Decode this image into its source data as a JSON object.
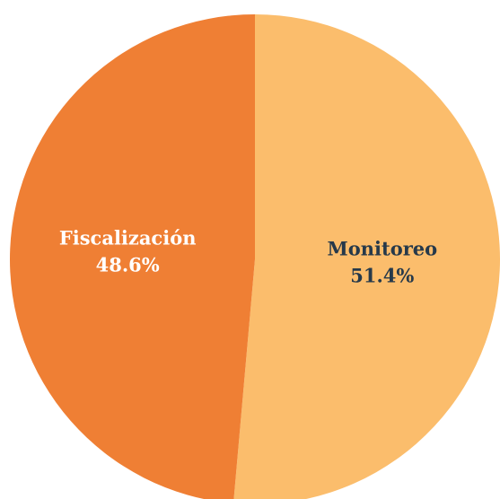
{
  "chart_data": {
    "type": "pie",
    "categories": [
      "Monitoreo",
      "Fiscalización"
    ],
    "values": [
      51.4,
      48.6
    ],
    "value_labels": [
      "51.4%",
      "48.6%"
    ],
    "colors": [
      "#fbbd6c",
      "#ef7f34"
    ],
    "label_colors": [
      "#26394a",
      "#ffffff"
    ]
  }
}
